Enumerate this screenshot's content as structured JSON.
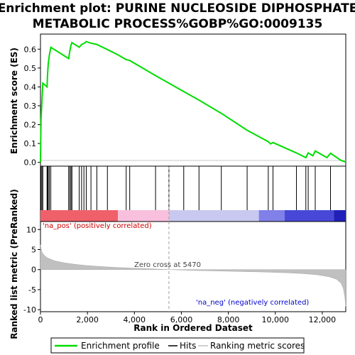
{
  "chart_data": {
    "type": "line",
    "title_lines": [
      "Enrichment plot: PURINE NUCLEOSIDE DIPHOSPHATE",
      "METABOLIC PROCESS%GOBP%GO:0009135"
    ],
    "es_panel": {
      "ylabel": "Enrichment score (ES)",
      "ylim": [
        -0.02,
        0.68
      ],
      "yticks": [
        0.0,
        0.1,
        0.2,
        0.3,
        0.4,
        0.5,
        0.6
      ],
      "ytick_labels": [
        "0.0",
        "0.1",
        "0.2",
        "0.3",
        "0.4",
        "0.5",
        "0.6"
      ],
      "series": [
        {
          "name": "Enrichment profile",
          "color": "#00dd00",
          "points": [
            [
              0,
              0.0
            ],
            [
              20,
              0.22
            ],
            [
              60,
              0.32
            ],
            [
              100,
              0.42
            ],
            [
              280,
              0.4
            ],
            [
              300,
              0.46
            ],
            [
              330,
              0.52
            ],
            [
              380,
              0.57
            ],
            [
              440,
              0.61
            ],
            [
              1200,
              0.55
            ],
            [
              1250,
              0.59
            ],
            [
              1300,
              0.62
            ],
            [
              1340,
              0.635
            ],
            [
              1650,
              0.61
            ],
            [
              1750,
              0.625
            ],
            [
              1850,
              0.63
            ],
            [
              1950,
              0.64
            ],
            [
              2150,
              0.632
            ],
            [
              2400,
              0.625
            ],
            [
              2850,
              0.598
            ],
            [
              3300,
              0.57
            ],
            [
              3650,
              0.545
            ],
            [
              3800,
              0.54
            ],
            [
              4900,
              0.46
            ],
            [
              5470,
              0.42
            ],
            [
              6100,
              0.375
            ],
            [
              6750,
              0.33
            ],
            [
              7700,
              0.26
            ],
            [
              8800,
              0.17
            ],
            [
              9700,
              0.11
            ],
            [
              9800,
              0.098
            ],
            [
              9900,
              0.105
            ],
            [
              10900,
              0.05
            ],
            [
              11300,
              0.025
            ],
            [
              11400,
              0.05
            ],
            [
              11600,
              0.035
            ],
            [
              11700,
              0.06
            ],
            [
              12200,
              0.025
            ],
            [
              12350,
              0.048
            ],
            [
              12800,
              0.01
            ],
            [
              13000,
              0.002
            ]
          ]
        }
      ]
    },
    "hits_panel": {
      "label": "Hits",
      "hit_positions": [
        20,
        60,
        100,
        280,
        300,
        330,
        380,
        440,
        1200,
        1250,
        1300,
        1340,
        1650,
        1750,
        1850,
        1950,
        2150,
        2400,
        2850,
        3650,
        3800,
        4900,
        5470,
        6100,
        6750,
        7700,
        8800,
        9700,
        9900,
        10900,
        11300,
        11400,
        11700,
        12350
      ],
      "gradient_bands": [
        {
          "from": 0,
          "to": 3300,
          "color": "#f0606a"
        },
        {
          "from": 3300,
          "to": 5470,
          "color": "#f8c0dc"
        },
        {
          "from": 5470,
          "to": 9300,
          "color": "#c8c8f0"
        },
        {
          "from": 9300,
          "to": 10400,
          "color": "#8080e8"
        },
        {
          "from": 10400,
          "to": 12500,
          "color": "#4848d8"
        },
        {
          "from": 12500,
          "to": 13000,
          "color": "#2020b8"
        }
      ]
    },
    "rank_panel": {
      "ylabel": "Ranked list metric (PreRanked)",
      "xlabel": "Rank in Ordered Dataset",
      "ylim": [
        -10.5,
        12
      ],
      "yticks": [
        -10,
        -5,
        0,
        5,
        10
      ],
      "ytick_labels": [
        "-10",
        "-5",
        "0",
        "5",
        "10"
      ],
      "zero_cross": 5470,
      "zero_cross_label": "Zero cross at 5470",
      "pos_label": "'na_pos' (positively correlated)",
      "neg_label": "'na_neg' (negatively correlated)",
      "curve": [
        [
          0,
          6.2
        ],
        [
          50,
          4.5
        ],
        [
          150,
          3.6
        ],
        [
          300,
          2.9
        ],
        [
          600,
          2.2
        ],
        [
          1000,
          1.7
        ],
        [
          1500,
          1.3
        ],
        [
          2000,
          1.0
        ],
        [
          2500,
          0.8
        ],
        [
          3000,
          0.6
        ],
        [
          4000,
          0.35
        ],
        [
          5000,
          0.12
        ],
        [
          5470,
          0.0
        ],
        [
          6500,
          -0.2
        ],
        [
          8000,
          -0.4
        ],
        [
          9500,
          -0.6
        ],
        [
          10500,
          -0.8
        ],
        [
          11200,
          -1.0
        ],
        [
          11800,
          -1.3
        ],
        [
          12300,
          -1.8
        ],
        [
          12600,
          -2.4
        ],
        [
          12800,
          -3.4
        ],
        [
          12900,
          -4.8
        ],
        [
          12960,
          -6.8
        ],
        [
          13000,
          -9.2
        ]
      ]
    },
    "xaxis": {
      "xlim": [
        0,
        13000
      ],
      "xticks": [
        0,
        2000,
        4000,
        6000,
        8000,
        10000,
        12000
      ],
      "xtick_labels": [
        "0",
        "2,000",
        "4,000",
        "6,000",
        "8,000",
        "10,000",
        "12,000"
      ]
    },
    "legend": {
      "placement": "bottom",
      "items": [
        {
          "label": "Enrichment profile",
          "color": "#00dd00"
        },
        {
          "label": "Hits",
          "color": "#000000"
        },
        {
          "label": "Ranking metric scores",
          "color": "#c0c0c0"
        }
      ]
    }
  },
  "colors": {
    "profile": "#00dd00",
    "hits": "#000000",
    "metric_fill": "#c0c0c0",
    "pos_text": "#cc0000",
    "neg_text": "#0000cc",
    "zero_line": "#a0a0a0"
  }
}
